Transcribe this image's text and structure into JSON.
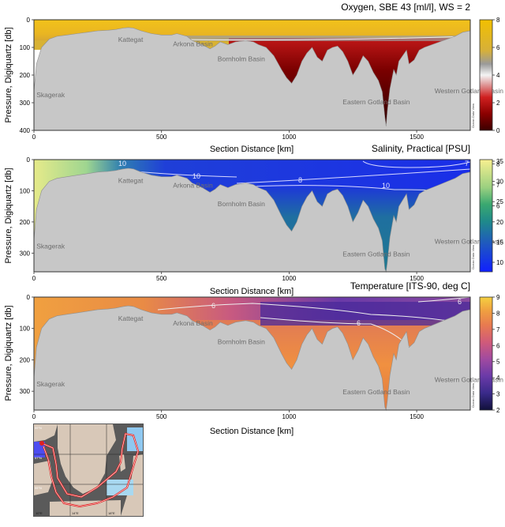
{
  "chart_data": [
    {
      "type": "heatmap",
      "title": "Oxygen, SBE 43 [ml/l], WS = 2",
      "xlabel": "Section Distance [km]",
      "ylabel": "Pressure, Digiquartz [db]",
      "xlim": [
        0,
        1710
      ],
      "ylim": [
        400,
        0
      ],
      "x_ticks": [
        "0",
        "500",
        "1000",
        "1500"
      ],
      "y_ticks": [
        "0",
        "100",
        "200",
        "300",
        "400"
      ],
      "colorbar": {
        "ticks": [
          "0",
          "2",
          "4",
          "6",
          "8"
        ],
        "range": [
          0,
          8
        ],
        "colors": [
          "#3a0000",
          "#8b0000",
          "#cc2020",
          "#d9a0a0",
          "#f2f2f2",
          "#9a9a9a",
          "#d9b23a",
          "#e8b820",
          "#f0c000"
        ],
        "credit": "Ocean Data View"
      },
      "region_labels": [
        {
          "name": "Skagerak",
          "x": 10,
          "y": 280
        },
        {
          "name": "Kattegat",
          "x": 330,
          "y": 80
        },
        {
          "name": "Arkona Basin",
          "x": 545,
          "y": 95
        },
        {
          "name": "Bornholm Basin",
          "x": 720,
          "y": 150
        },
        {
          "name": "Eastern Gotland Basin",
          "x": 1210,
          "y": 305
        },
        {
          "name": "Western Gotland Basin",
          "x": 1570,
          "y": 265
        }
      ]
    },
    {
      "type": "heatmap",
      "title": "Salinity, Practical [PSU]",
      "xlabel": "Section Distance [km]",
      "ylabel": "Pressure, Digiquartz [db]",
      "xlim": [
        0,
        1710
      ],
      "ylim": [
        360,
        0
      ],
      "x_ticks": [
        "0",
        "500",
        "1000",
        "1500"
      ],
      "y_ticks": [
        "0",
        "100",
        "200",
        "300"
      ],
      "colorbar": {
        "ticks_bottom": [
          "10",
          "15",
          "20",
          "25",
          "30",
          "35"
        ],
        "ticks_top": [
          "6",
          "7",
          "8"
        ],
        "colors": [
          "#1a2ee8",
          "#1f55c0",
          "#1f7a90",
          "#2a9a7a",
          "#5fbf6a",
          "#b8e080",
          "#f5f080"
        ],
        "credit": "Ocean Data View"
      },
      "contours": [
        "7",
        "8",
        "10",
        "10",
        "10"
      ],
      "region_labels": [
        {
          "name": "Skagerak",
          "x": 10,
          "y": 285
        },
        {
          "name": "Kattegat",
          "x": 330,
          "y": 75
        },
        {
          "name": "Arkona Basin",
          "x": 545,
          "y": 90
        },
        {
          "name": "Bornholm Basin",
          "x": 720,
          "y": 150
        },
        {
          "name": "Eastern Gotland Basin",
          "x": 1210,
          "y": 310
        },
        {
          "name": "Western Gotland Basin",
          "x": 1570,
          "y": 270
        }
      ]
    },
    {
      "type": "heatmap",
      "title": "Temperature [ITS-90, deg C]",
      "xlabel": "Section Distance [km]",
      "ylabel": "Pressure, Digiquartz [db]",
      "xlim": [
        0,
        1710
      ],
      "ylim": [
        360,
        0
      ],
      "x_ticks": [
        "0",
        "500",
        "1000",
        "1500"
      ],
      "y_ticks": [
        "0",
        "100",
        "200",
        "300"
      ],
      "colorbar": {
        "ticks": [
          "2",
          "3",
          "4",
          "5",
          "6",
          "7",
          "8",
          "9"
        ],
        "range": [
          2,
          9
        ],
        "colors": [
          "#10103a",
          "#3a2a8a",
          "#6a3aa8",
          "#a04aa0",
          "#d05a7a",
          "#e87a50",
          "#f0a040",
          "#f5d040"
        ],
        "credit": "Ocean Data View"
      },
      "contours": [
        "6",
        "6",
        "6"
      ],
      "region_labels": [
        {
          "name": "Skagerak",
          "x": 10,
          "y": 285
        },
        {
          "name": "Kattegat",
          "x": 330,
          "y": 75
        },
        {
          "name": "Arkona Basin",
          "x": 545,
          "y": 90
        },
        {
          "name": "Bornholm Basin",
          "x": 720,
          "y": 150
        },
        {
          "name": "Eastern Gotland Basin",
          "x": 1210,
          "y": 310
        },
        {
          "name": "Western Gotland Basin",
          "x": 1570,
          "y": 270
        }
      ]
    }
  ],
  "bathymetry_profile": {
    "x": [
      0,
      10,
      30,
      60,
      90,
      130,
      170,
      210,
      250,
      290,
      320,
      350,
      370,
      390,
      420,
      460,
      500,
      540,
      560,
      600,
      620,
      660,
      690,
      710,
      730,
      760,
      790,
      830,
      860,
      880,
      910,
      940,
      970,
      990,
      1010,
      1030,
      1050,
      1070,
      1090,
      1110,
      1130,
      1150,
      1170,
      1190,
      1210,
      1230,
      1250,
      1270,
      1290,
      1310,
      1330,
      1350,
      1365,
      1375,
      1380,
      1385,
      1395,
      1410,
      1420,
      1430,
      1445,
      1460,
      1470,
      1490,
      1510,
      1530,
      1560,
      1590,
      1620,
      1650,
      1680,
      1710
    ],
    "depth": [
      260,
      160,
      100,
      70,
      60,
      55,
      50,
      45,
      40,
      38,
      35,
      30,
      28,
      30,
      40,
      50,
      55,
      55,
      50,
      60,
      75,
      90,
      105,
      95,
      80,
      90,
      80,
      75,
      80,
      90,
      100,
      130,
      180,
      210,
      230,
      200,
      150,
      120,
      100,
      135,
      150,
      110,
      100,
      95,
      115,
      150,
      200,
      170,
      130,
      150,
      190,
      220,
      260,
      350,
      385,
      330,
      250,
      180,
      200,
      150,
      130,
      110,
      160,
      145,
      110,
      100,
      90,
      80,
      70,
      60,
      45,
      40
    ]
  },
  "map_inset": {
    "lat_labels": [
      "59°N",
      "57°N",
      "55°N"
    ],
    "lon_labels": [
      "10°E",
      "14°E",
      "18°E"
    ]
  },
  "colors": {
    "land": "#c7c7c7",
    "landborder": "#8f8f8f",
    "isoline": "#e8e8e8",
    "map_route": "#e02020",
    "map_sea": "#5a5a5a",
    "map_land": "#d8c8b8"
  }
}
